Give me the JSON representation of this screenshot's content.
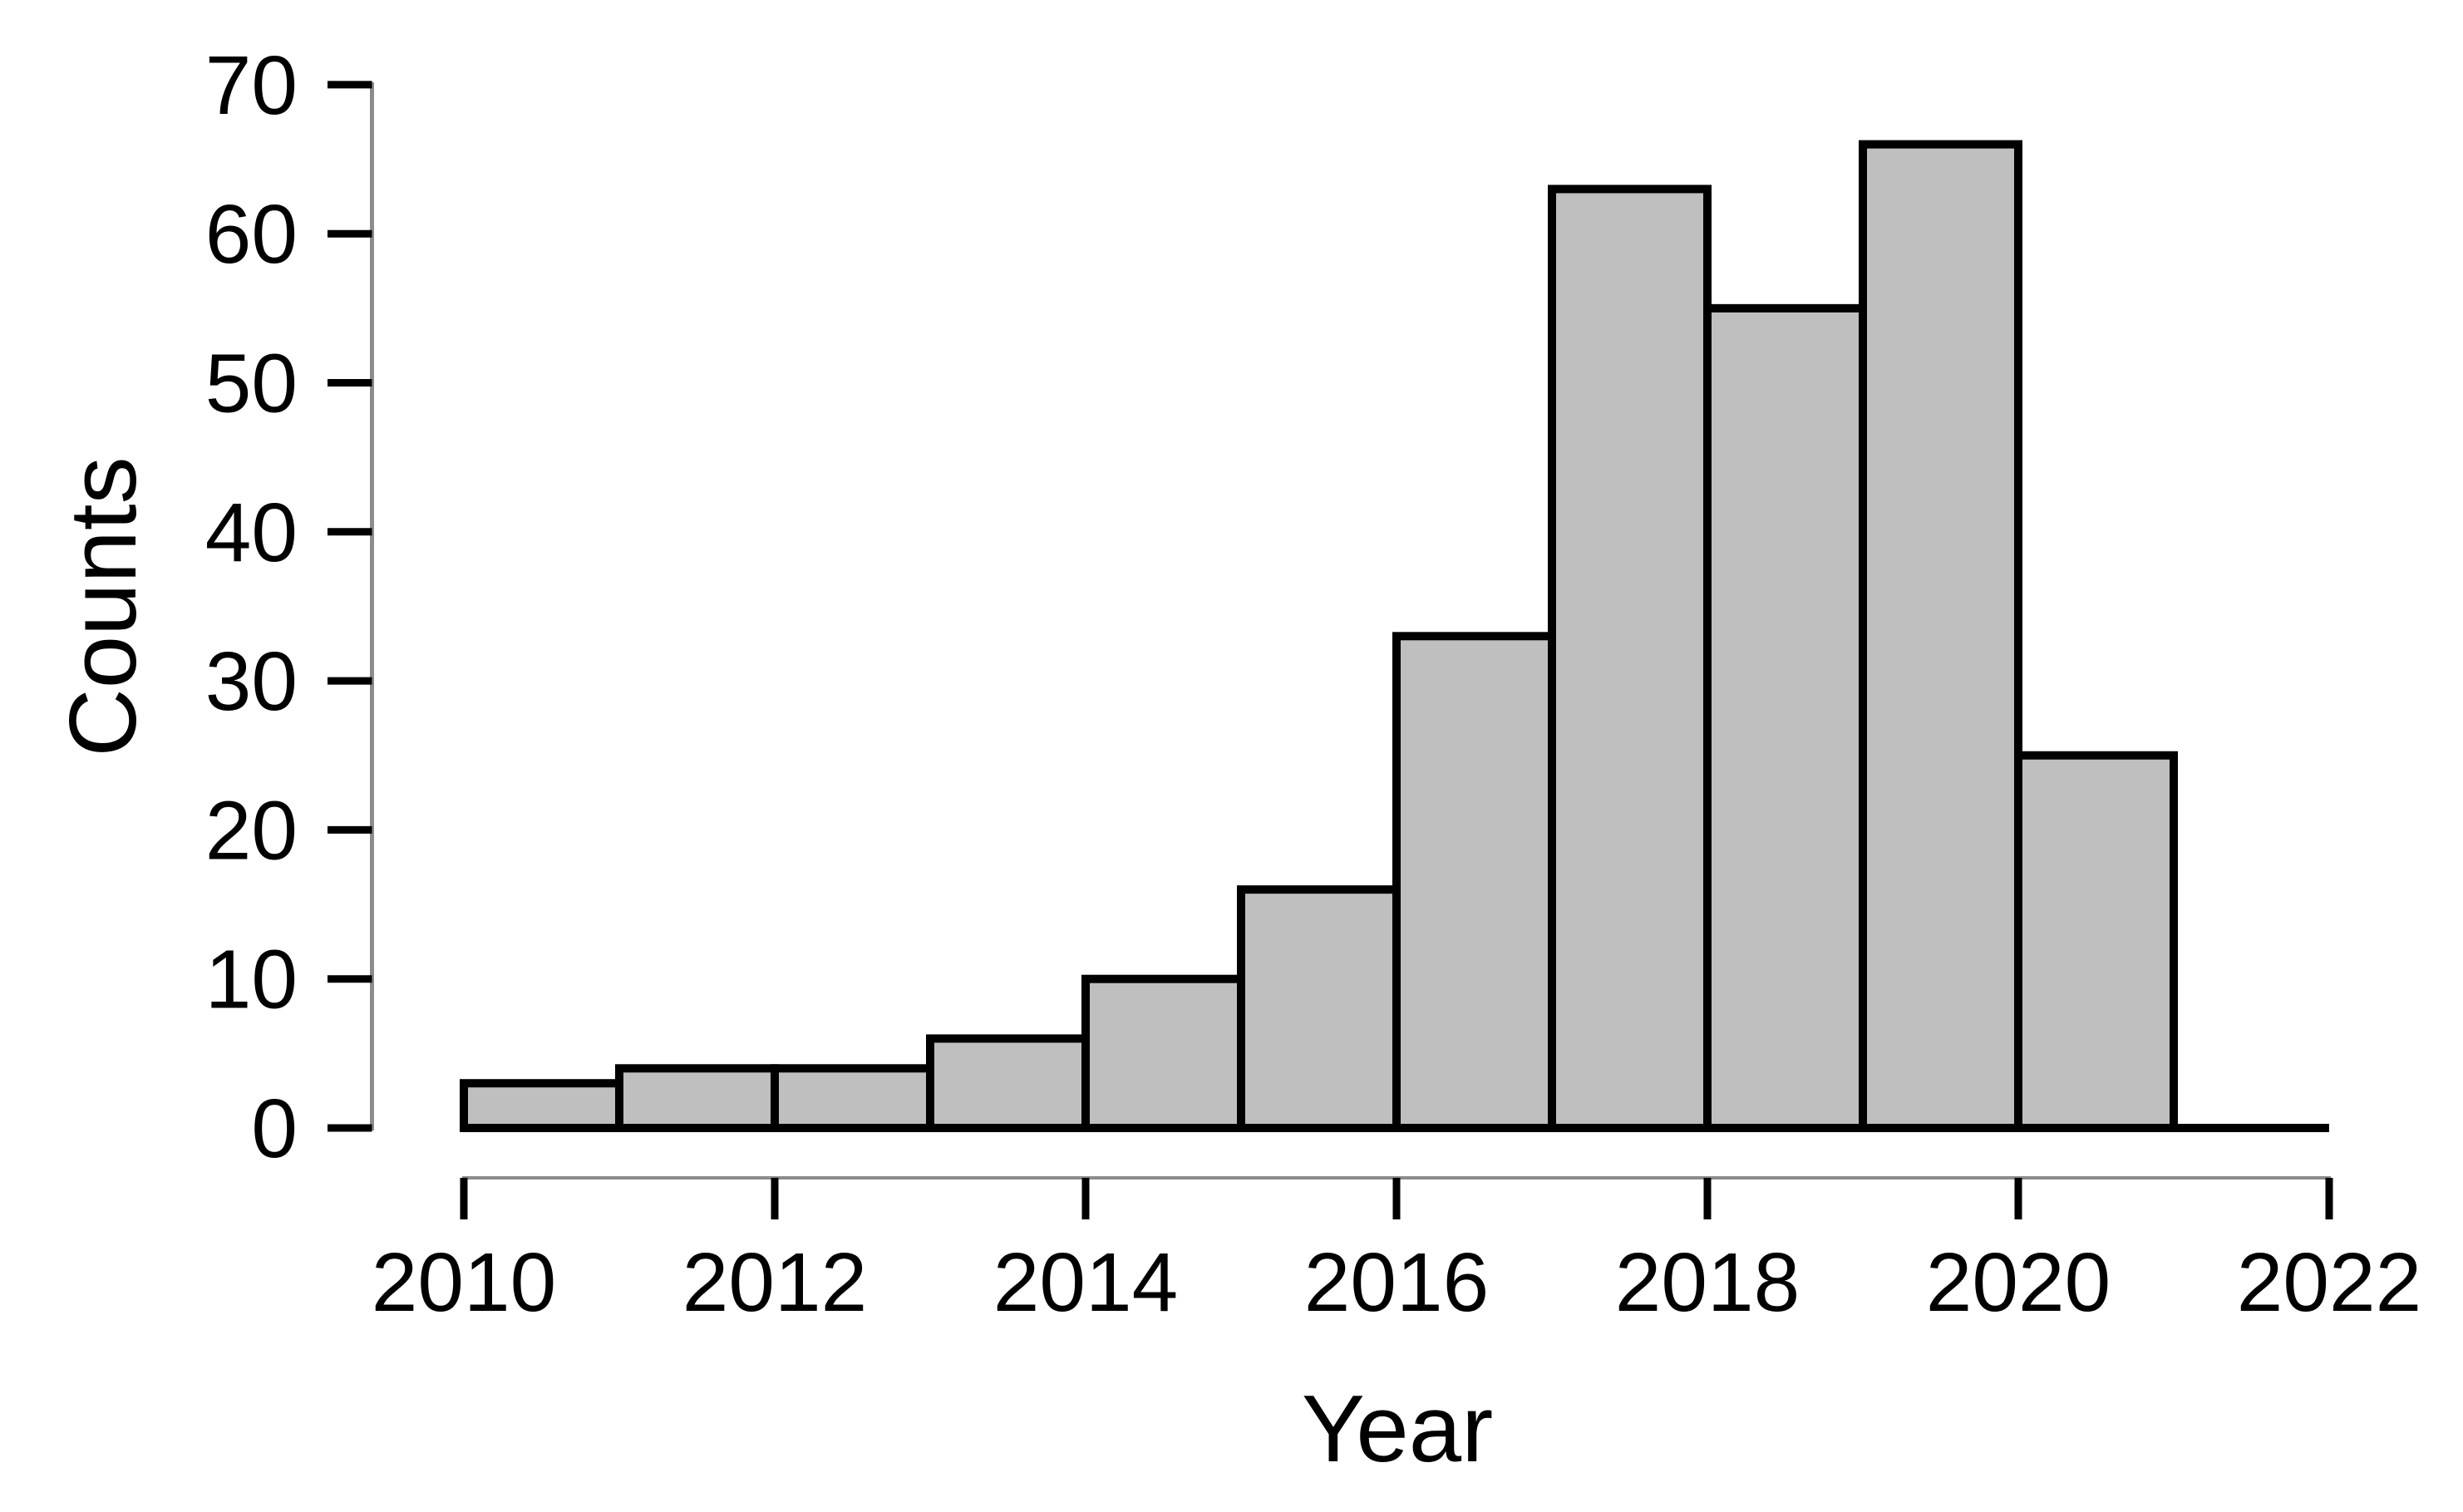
{
  "chart_data": {
    "type": "bar",
    "subtype": "histogram",
    "title": "",
    "xlabel": "Year",
    "ylabel": "Counts",
    "xlim": [
      2010,
      2022
    ],
    "ylim": [
      0,
      70
    ],
    "grid": false,
    "legend": "none",
    "x_tick_labels": [
      "2010",
      "2012",
      "2014",
      "2016",
      "2018",
      "2020",
      "2022"
    ],
    "x_tick_values": [
      2010,
      2012,
      2014,
      2016,
      2018,
      2020,
      2022
    ],
    "y_tick_labels": [
      "0",
      "10",
      "20",
      "30",
      "40",
      "50",
      "60",
      "70"
    ],
    "y_tick_values": [
      0,
      10,
      20,
      30,
      40,
      50,
      60,
      70
    ],
    "bins": [
      {
        "start": 2010,
        "end": 2011,
        "count": 3
      },
      {
        "start": 2011,
        "end": 2012,
        "count": 4
      },
      {
        "start": 2012,
        "end": 2013,
        "count": 4
      },
      {
        "start": 2013,
        "end": 2014,
        "count": 6
      },
      {
        "start": 2014,
        "end": 2015,
        "count": 10
      },
      {
        "start": 2015,
        "end": 2016,
        "count": 16
      },
      {
        "start": 2016,
        "end": 2017,
        "count": 33
      },
      {
        "start": 2017,
        "end": 2018,
        "count": 63
      },
      {
        "start": 2018,
        "end": 2019,
        "count": 55
      },
      {
        "start": 2019,
        "end": 2020,
        "count": 66
      },
      {
        "start": 2020,
        "end": 2021,
        "count": 25
      }
    ],
    "colors": {
      "background": "#ffffff",
      "bar_fill": "#bfbfbf",
      "bar_stroke": "#000000",
      "baseline": "#000000",
      "axis_line": "#8c8c8c",
      "tick_mark": "#000000",
      "text": "#000000"
    }
  }
}
